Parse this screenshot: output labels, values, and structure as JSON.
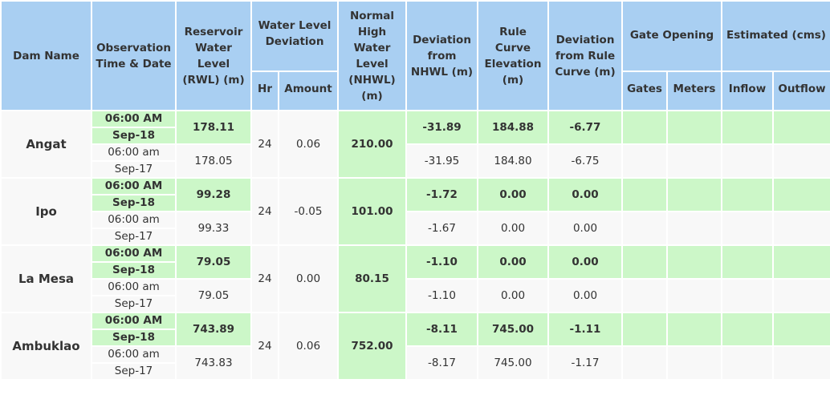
{
  "header": {
    "dam_name": "Dam Name",
    "observation": "Observation Time & Date",
    "rwl": "Reservoir Water Level (RWL) (m)",
    "wl_deviation": "Water Level Deviation",
    "hr": "Hr",
    "amount": "Amount",
    "nhwl": "Normal High Water Level (NHWL) (m)",
    "dev_nhwl": "Deviation from NHWL (m)",
    "rule_curve": "Rule Curve Elevation (m)",
    "dev_rule": "Deviation from Rule Curve (m)",
    "gate_opening": "Gate Opening",
    "gates": "Gates",
    "meters": "Meters",
    "estimated": "Estimated (cms)",
    "inflow": "Inflow",
    "outflow": "Outflow"
  },
  "dams": [
    {
      "name": "Angat",
      "hr": "24",
      "amount": "0.06",
      "nhwl": "210.00",
      "current": {
        "time": "06:00 AM",
        "date": "Sep-18",
        "rwl": "178.11",
        "dev_nhwl": "-31.89",
        "rule_curve": "184.88",
        "dev_rule": "-6.77"
      },
      "previous": {
        "time": "06:00 am",
        "date": "Sep-17",
        "rwl": "178.05",
        "dev_nhwl": "-31.95",
        "rule_curve": "184.80",
        "dev_rule": "-6.75"
      }
    },
    {
      "name": "Ipo",
      "hr": "24",
      "amount": "-0.05",
      "nhwl": "101.00",
      "current": {
        "time": "06:00 AM",
        "date": "Sep-18",
        "rwl": "99.28",
        "dev_nhwl": "-1.72",
        "rule_curve": "0.00",
        "dev_rule": "0.00"
      },
      "previous": {
        "time": "06:00 am",
        "date": "Sep-17",
        "rwl": "99.33",
        "dev_nhwl": "-1.67",
        "rule_curve": "0.00",
        "dev_rule": "0.00"
      }
    },
    {
      "name": "La Mesa",
      "hr": "24",
      "amount": "0.00",
      "nhwl": "80.15",
      "current": {
        "time": "06:00 AM",
        "date": "Sep-18",
        "rwl": "79.05",
        "dev_nhwl": "-1.10",
        "rule_curve": "0.00",
        "dev_rule": "0.00"
      },
      "previous": {
        "time": "06:00 am",
        "date": "Sep-17",
        "rwl": "79.05",
        "dev_nhwl": "-1.10",
        "rule_curve": "0.00",
        "dev_rule": "0.00"
      }
    },
    {
      "name": "Ambuklao",
      "hr": "24",
      "amount": "0.06",
      "nhwl": "752.00",
      "current": {
        "time": "06:00 AM",
        "date": "Sep-18",
        "rwl": "743.89",
        "dev_nhwl": "-8.11",
        "rule_curve": "745.00",
        "dev_rule": "-1.11"
      },
      "previous": {
        "time": "06:00 am",
        "date": "Sep-17",
        "rwl": "743.83",
        "dev_nhwl": "-8.17",
        "rule_curve": "745.00",
        "dev_rule": "-1.17"
      }
    }
  ]
}
